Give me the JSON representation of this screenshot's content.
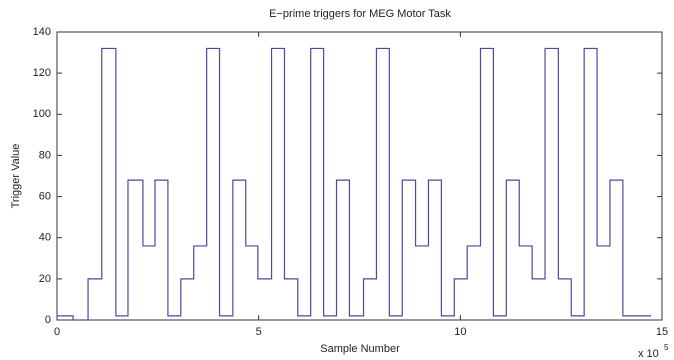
{
  "chart_data": {
    "type": "line",
    "step": "post",
    "title": "E−prime triggers for MEG Motor Task",
    "xlabel": "Sample Number",
    "ylabel": "Trigger Value",
    "x_multiplier": "x 10",
    "x_multiplier_exp": "5",
    "x": [
      0,
      0.4,
      0.77,
      1.11,
      1.46,
      1.76,
      2.13,
      2.43,
      2.75,
      3.07,
      3.39,
      3.71,
      4.03,
      4.36,
      4.68,
      4.98,
      5.32,
      5.64,
      5.97,
      6.29,
      6.61,
      6.93,
      7.25,
      7.6,
      7.92,
      8.24,
      8.56,
      8.89,
      9.21,
      9.53,
      9.85,
      10.17,
      10.5,
      10.82,
      11.14,
      11.46,
      11.78,
      12.1,
      12.43,
      12.75,
      13.07,
      13.39,
      13.71,
      14.03,
      14.73
    ],
    "series": [
      {
        "color": "#4a4aa0",
        "values": [
          2,
          0,
          20,
          132,
          2,
          68,
          36,
          68,
          2,
          20,
          36,
          132,
          2,
          68,
          36,
          20,
          132,
          20,
          2,
          132,
          2,
          68,
          2,
          20,
          132,
          2,
          68,
          36,
          68,
          2,
          20,
          36,
          132,
          2,
          68,
          36,
          20,
          132,
          20,
          2,
          132,
          36,
          68,
          2,
          2
        ]
      }
    ],
    "xlim": [
      0,
      15
    ],
    "xticks": [
      0,
      5,
      10,
      15
    ],
    "ylim": [
      0,
      140
    ],
    "yticks": [
      0,
      20,
      40,
      60,
      80,
      100,
      120,
      140
    ]
  }
}
